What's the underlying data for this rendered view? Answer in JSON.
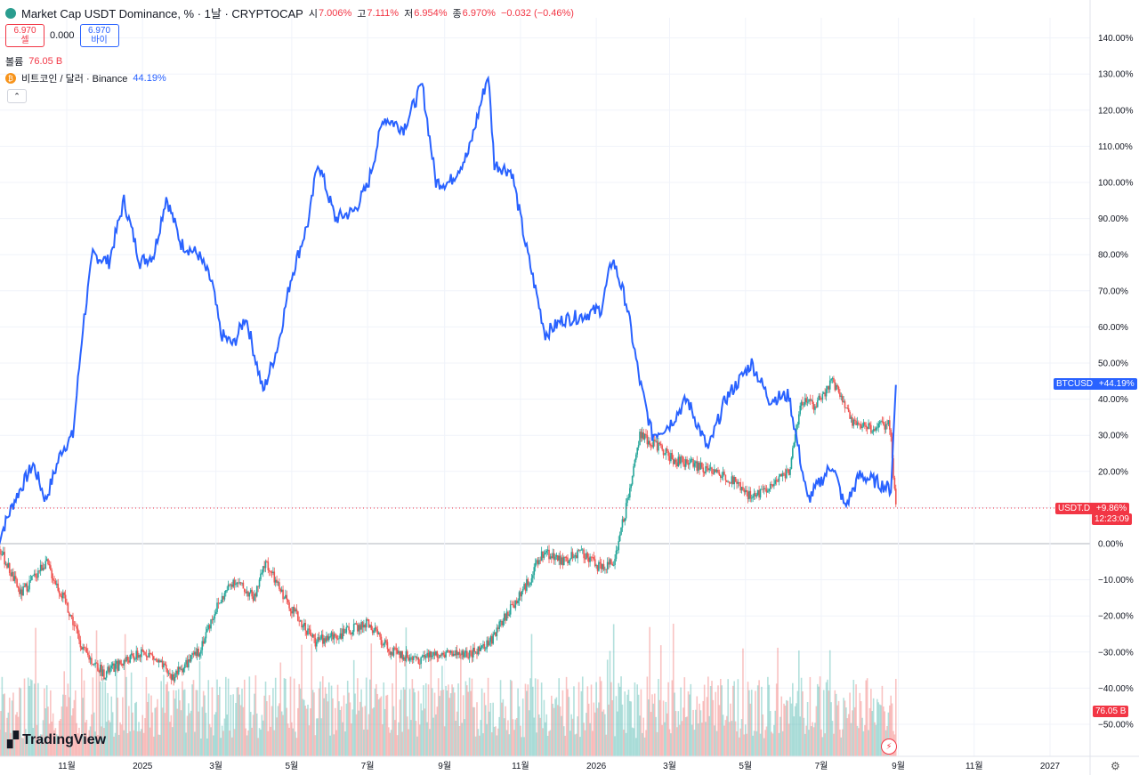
{
  "header": {
    "title": "Market Cap USDT Dominance, % · 1날 · CRYPTOCAP",
    "o_label": "시",
    "o_value": "7.006%",
    "h_label": "고",
    "h_value": "7.111%",
    "l_label": "저",
    "l_value": "6.954%",
    "c_label": "종",
    "c_value": "6.970%",
    "change": "−0.032 (−0.46%)"
  },
  "trade": {
    "sell_price": "6.970",
    "sell_label": "셀",
    "spread": "0.000",
    "buy_price": "6.970",
    "buy_label": "바이"
  },
  "volume": {
    "label": "볼륨",
    "value": "76.05 B",
    "tag": "76.05 B"
  },
  "compare": {
    "label": "비트코인 / 달러 · Binance",
    "value": "44.19%"
  },
  "tags": {
    "btc_name": "BTCUSD",
    "btc_value": "+44.19%",
    "usdt_name": "USDT.D",
    "usdt_value": "+9.86%",
    "countdown": "12:23:09"
  },
  "colors": {
    "up": "#26a69a",
    "down": "#ef5350",
    "btc_line": "#2962ff",
    "usdt_tag": "#f23645"
  },
  "brand": "TradingView",
  "icons": [
    "usdt-logo-icon",
    "bitcoin-icon",
    "chevron-up-icon",
    "lightning-icon",
    "gear-icon",
    "tradingview-logo-icon"
  ],
  "chart_data": {
    "type": "line",
    "title": "Market Cap USDT Dominance, % · 1날 · CRYPTOCAP",
    "y_ticks": [
      "140.00%",
      "130.00%",
      "120.00%",
      "110.00%",
      "100.00%",
      "90.00%",
      "80.00%",
      "70.00%",
      "60.00%",
      "50.00%",
      "40.00%",
      "30.00%",
      "20.00%",
      "10.00%",
      "0.00%",
      "−10.00%",
      "−20.00%",
      "−30.00%",
      "−40.00%",
      "−50.00%"
    ],
    "y_tick_values": [
      140,
      130,
      120,
      110,
      100,
      90,
      80,
      70,
      60,
      50,
      40,
      30,
      20,
      10,
      0,
      -10,
      -20,
      -30,
      -40,
      -50
    ],
    "x_ticks": [
      "11월",
      "2025",
      "3월",
      "5월",
      "7월",
      "9월",
      "11월",
      "2026",
      "3월",
      "5월",
      "7월",
      "9월",
      "11월",
      "2027"
    ],
    "x_tick_dates": [
      "2024-11",
      "2025-01",
      "2025-03",
      "2025-05",
      "2025-07",
      "2025-09",
      "2025-11",
      "2026-01",
      "2026-03",
      "2026-05",
      "2026-07",
      "2026-09",
      "2026-11",
      "2027-01"
    ],
    "ylim": [
      -50,
      145
    ],
    "series": [
      {
        "name": "BTCUSD",
        "kind": "line",
        "points": [
          [
            "2024-09-06",
            0
          ],
          [
            "2024-09-20",
            12
          ],
          [
            "2024-10-05",
            22
          ],
          [
            "2024-10-15",
            12
          ],
          [
            "2024-10-28",
            26
          ],
          [
            "2024-11-06",
            30
          ],
          [
            "2024-11-14",
            60
          ],
          [
            "2024-11-22",
            80
          ],
          [
            "2024-12-05",
            78
          ],
          [
            "2024-12-17",
            95
          ],
          [
            "2024-12-30",
            78
          ],
          [
            "2025-01-10",
            80
          ],
          [
            "2025-01-20",
            96
          ],
          [
            "2025-02-01",
            83
          ],
          [
            "2025-02-15",
            80
          ],
          [
            "2025-02-26",
            72
          ],
          [
            "2025-03-05",
            58
          ],
          [
            "2025-03-15",
            55
          ],
          [
            "2025-03-25",
            63
          ],
          [
            "2025-04-08",
            42
          ],
          [
            "2025-04-20",
            55
          ],
          [
            "2025-04-30",
            73
          ],
          [
            "2025-05-15",
            90
          ],
          [
            "2025-05-22",
            106
          ],
          [
            "2025-06-05",
            90
          ],
          [
            "2025-06-20",
            92
          ],
          [
            "2025-07-01",
            99
          ],
          [
            "2025-07-14",
            118
          ],
          [
            "2025-07-30",
            115
          ],
          [
            "2025-08-14",
            127
          ],
          [
            "2025-08-25",
            100
          ],
          [
            "2025-09-05",
            100
          ],
          [
            "2025-09-20",
            108
          ],
          [
            "2025-10-06",
            130
          ],
          [
            "2025-10-11",
            105
          ],
          [
            "2025-10-25",
            103
          ],
          [
            "2025-11-05",
            83
          ],
          [
            "2025-11-21",
            58
          ],
          [
            "2025-12-05",
            62
          ],
          [
            "2025-12-20",
            63
          ],
          [
            "2026-01-05",
            65
          ],
          [
            "2026-01-14",
            79
          ],
          [
            "2026-01-25",
            67
          ],
          [
            "2026-02-05",
            45
          ],
          [
            "2026-02-15",
            30
          ],
          [
            "2026-03-01",
            33
          ],
          [
            "2026-03-15",
            40
          ],
          [
            "2026-04-01",
            26
          ],
          [
            "2026-04-15",
            40
          ],
          [
            "2026-05-06",
            50
          ],
          [
            "2026-05-20",
            40
          ],
          [
            "2026-06-05",
            41
          ],
          [
            "2026-06-20",
            12
          ],
          [
            "2026-07-10",
            22
          ],
          [
            "2026-07-20",
            10
          ],
          [
            "2026-08-01",
            19
          ],
          [
            "2026-08-15",
            17
          ],
          [
            "2026-08-26",
            15
          ],
          [
            "2026-08-30",
            44
          ]
        ]
      },
      {
        "name": "USDT.D",
        "kind": "candlestick",
        "points": [
          [
            "2024-09-06",
            0
          ],
          [
            "2024-09-25",
            -14
          ],
          [
            "2024-10-15",
            -5
          ],
          [
            "2024-11-01",
            -17
          ],
          [
            "2024-11-15",
            -30
          ],
          [
            "2024-12-01",
            -36
          ],
          [
            "2024-12-20",
            -32
          ],
          [
            "2025-01-05",
            -30
          ],
          [
            "2025-01-25",
            -37
          ],
          [
            "2025-02-15",
            -30
          ],
          [
            "2025-03-01",
            -18
          ],
          [
            "2025-03-15",
            -10
          ],
          [
            "2025-04-01",
            -15
          ],
          [
            "2025-04-10",
            -5
          ],
          [
            "2025-04-20",
            -12
          ],
          [
            "2025-05-05",
            -20
          ],
          [
            "2025-05-20",
            -27
          ],
          [
            "2025-06-10",
            -25
          ],
          [
            "2025-07-01",
            -22
          ],
          [
            "2025-07-20",
            -30
          ],
          [
            "2025-08-10",
            -32
          ],
          [
            "2025-08-30",
            -30
          ],
          [
            "2025-09-20",
            -31
          ],
          [
            "2025-10-06",
            -28
          ],
          [
            "2025-10-20",
            -20
          ],
          [
            "2025-11-05",
            -12
          ],
          [
            "2025-11-20",
            -2
          ],
          [
            "2025-12-05",
            -5
          ],
          [
            "2025-12-20",
            -2
          ],
          [
            "2026-01-05",
            -7
          ],
          [
            "2026-01-15",
            -5
          ],
          [
            "2026-01-25",
            10
          ],
          [
            "2026-02-05",
            30
          ],
          [
            "2026-02-20",
            27
          ],
          [
            "2026-03-05",
            23
          ],
          [
            "2026-03-20",
            22
          ],
          [
            "2026-04-05",
            20
          ],
          [
            "2026-04-20",
            18
          ],
          [
            "2026-05-05",
            13
          ],
          [
            "2026-05-20",
            15
          ],
          [
            "2026-06-05",
            20
          ],
          [
            "2026-06-15",
            40
          ],
          [
            "2026-06-25",
            38
          ],
          [
            "2026-07-10",
            45
          ],
          [
            "2026-07-25",
            34
          ],
          [
            "2026-08-10",
            32
          ],
          [
            "2026-08-25",
            33
          ],
          [
            "2026-08-30",
            9.86
          ]
        ]
      }
    ],
    "last_values": {
      "BTCUSD": "+44.19%",
      "USDT.D": "+9.86%"
    }
  }
}
